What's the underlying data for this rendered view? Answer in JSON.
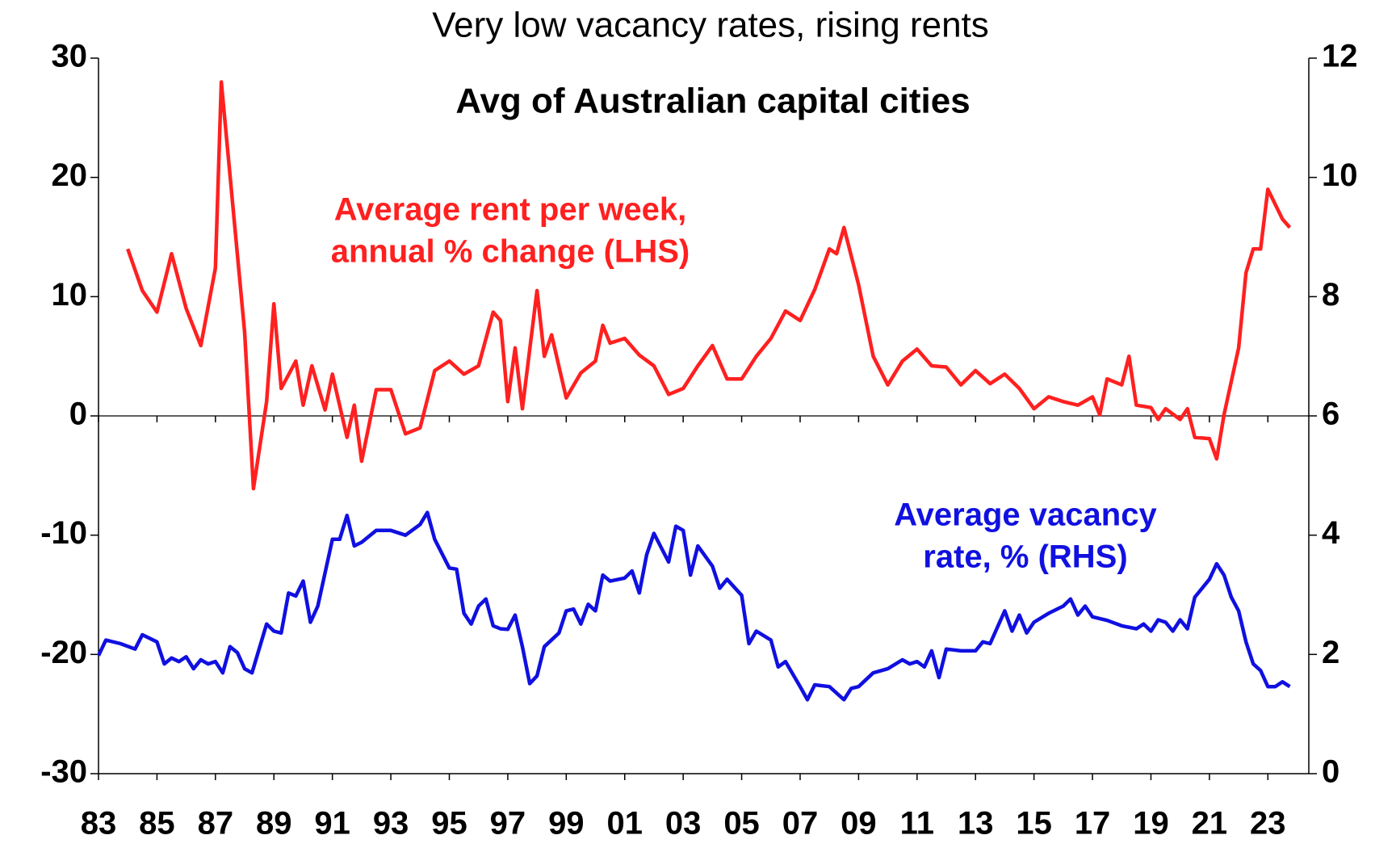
{
  "chart_data": {
    "type": "line",
    "title": "Very low vacancy rates, rising rents",
    "subtitle": "Avg of Australian capital cities",
    "xlim": [
      1983,
      2024.4
    ],
    "xticks": [
      {
        "value": 1983,
        "label": "83"
      },
      {
        "value": 1985,
        "label": "85"
      },
      {
        "value": 1987,
        "label": "87"
      },
      {
        "value": 1989,
        "label": "89"
      },
      {
        "value": 1991,
        "label": "91"
      },
      {
        "value": 1993,
        "label": "93"
      },
      {
        "value": 1995,
        "label": "95"
      },
      {
        "value": 1997,
        "label": "97"
      },
      {
        "value": 1999,
        "label": "99"
      },
      {
        "value": 2001,
        "label": "01"
      },
      {
        "value": 2003,
        "label": "03"
      },
      {
        "value": 2005,
        "label": "05"
      },
      {
        "value": 2007,
        "label": "07"
      },
      {
        "value": 2009,
        "label": "09"
      },
      {
        "value": 2011,
        "label": "11"
      },
      {
        "value": 2013,
        "label": "13"
      },
      {
        "value": 2015,
        "label": "15"
      },
      {
        "value": 2017,
        "label": "17"
      },
      {
        "value": 2019,
        "label": "19"
      },
      {
        "value": 2021,
        "label": "21"
      },
      {
        "value": 2023,
        "label": "23"
      }
    ],
    "ylim": [
      -30,
      30
    ],
    "yticks": [
      -30,
      -20,
      -10,
      0,
      10,
      20,
      30
    ],
    "y2lim": [
      0,
      12
    ],
    "y2ticks": [
      0,
      2,
      4,
      6,
      8,
      10,
      12
    ],
    "zero_line": true,
    "series": [
      {
        "label_lines": [
          "Average rent per week,",
          "annual % change (LHS)"
        ],
        "color": "#ff2020",
        "axis": "y",
        "x": [
          1984.0,
          1984.5,
          1985.0,
          1985.5,
          1986.0,
          1986.5,
          1987.0,
          1987.2,
          1988.0,
          1988.3,
          1988.75,
          1989.0,
          1989.25,
          1989.75,
          1990.0,
          1990.3,
          1990.75,
          1991.0,
          1991.5,
          1991.75,
          1992.0,
          1992.5,
          1993.0,
          1993.5,
          1994.0,
          1994.5,
          1995.0,
          1995.5,
          1996.0,
          1996.5,
          1996.75,
          1997.0,
          1997.25,
          1997.5,
          1998.0,
          1998.25,
          1998.5,
          1999.0,
          1999.5,
          2000.0,
          2000.25,
          2000.5,
          2001.0,
          2001.5,
          2002.0,
          2002.5,
          2003.0,
          2003.5,
          2004.0,
          2004.5,
          2005.0,
          2005.5,
          2006.0,
          2006.5,
          2007.0,
          2007.5,
          2008.0,
          2008.25,
          2008.5,
          2009.0,
          2009.5,
          2010.0,
          2010.5,
          2011.0,
          2011.5,
          2012.0,
          2012.5,
          2013.0,
          2013.5,
          2014.0,
          2014.5,
          2015.0,
          2015.5,
          2016.0,
          2016.5,
          2017.0,
          2017.25,
          2017.5,
          2018.0,
          2018.25,
          2018.5,
          2019.0,
          2019.25,
          2019.5,
          2020.0,
          2020.25,
          2020.5,
          2021.0,
          2021.25,
          2021.5,
          2022.0,
          2022.25,
          2022.5,
          2022.75,
          2023.0,
          2023.5,
          2023.75
        ],
        "values": [
          14,
          10.5,
          8.7,
          13.6,
          9,
          5.9,
          12.4,
          28,
          7,
          -6.1,
          1.2,
          9.4,
          2.3,
          4.6,
          0.9,
          4.2,
          0.5,
          3.5,
          -1.8,
          0.9,
          -3.8,
          2.2,
          2.2,
          -1.5,
          -1,
          3.8,
          4.6,
          3.5,
          4.2,
          8.7,
          8,
          1.2,
          5.7,
          0.6,
          10.5,
          5,
          6.8,
          1.5,
          3.6,
          4.6,
          7.6,
          6.1,
          6.5,
          5.1,
          4.2,
          1.8,
          2.3,
          4.2,
          5.9,
          3.1,
          3.1,
          5,
          6.5,
          8.8,
          8,
          10.6,
          14,
          13.6,
          15.8,
          11,
          5,
          2.6,
          4.6,
          5.6,
          4.2,
          4.1,
          2.6,
          3.8,
          2.7,
          3.5,
          2.3,
          0.6,
          1.6,
          1.2,
          0.9,
          1.6,
          0.1,
          3.1,
          2.6,
          5,
          0.9,
          0.7,
          -0.3,
          0.6,
          -0.3,
          0.6,
          -1.8,
          -1.9,
          -3.6,
          0.1,
          5.7,
          12,
          14,
          14,
          19,
          16.5,
          15.8
        ]
      },
      {
        "label_lines": [
          "Average vacancy",
          "rate, % (RHS)"
        ],
        "color": "#1010e0",
        "axis": "y2",
        "x": [
          1983.0,
          1983.25,
          1983.75,
          1984.25,
          1984.5,
          1985.0,
          1985.25,
          1985.5,
          1985.75,
          1986.0,
          1986.25,
          1986.5,
          1986.75,
          1987.0,
          1987.25,
          1987.5,
          1987.75,
          1988.0,
          1988.25,
          1988.75,
          1989.0,
          1989.25,
          1989.5,
          1989.75,
          1990.0,
          1990.25,
          1990.5,
          1991.0,
          1991.25,
          1991.5,
          1991.75,
          1992.0,
          1992.5,
          1993.0,
          1993.5,
          1994.0,
          1994.25,
          1994.5,
          1995.0,
          1995.25,
          1995.5,
          1995.75,
          1996.0,
          1996.25,
          1996.5,
          1996.75,
          1997.0,
          1997.25,
          1997.5,
          1997.75,
          1998.0,
          1998.25,
          1998.75,
          1999.0,
          1999.25,
          1999.5,
          1999.75,
          2000.0,
          2000.25,
          2000.5,
          2001.0,
          2001.25,
          2001.5,
          2001.75,
          2002.0,
          2002.5,
          2002.75,
          2003.0,
          2003.25,
          2003.5,
          2004.0,
          2004.25,
          2004.5,
          2005.0,
          2005.25,
          2005.5,
          2006.0,
          2006.25,
          2006.5,
          2007.0,
          2007.25,
          2007.5,
          2008.0,
          2008.5,
          2008.75,
          2009.0,
          2009.5,
          2010.0,
          2010.5,
          2010.75,
          2011.0,
          2011.25,
          2011.5,
          2011.75,
          2012.0,
          2012.5,
          2013.0,
          2013.25,
          2013.5,
          2014.0,
          2014.25,
          2014.5,
          2014.75,
          2015.0,
          2015.5,
          2016.0,
          2016.25,
          2016.5,
          2016.75,
          2017.0,
          2017.5,
          2018.0,
          2018.5,
          2018.75,
          2019.0,
          2019.25,
          2019.5,
          2019.75,
          2020.0,
          2020.25,
          2020.5,
          2021.0,
          2021.25,
          2021.5,
          2021.75,
          2022.0,
          2022.25,
          2022.5,
          2022.75,
          2023.0,
          2023.25,
          2023.5,
          2023.75
        ],
        "values": [
          1.98,
          2.24,
          2.18,
          2.09,
          2.33,
          2.21,
          1.84,
          1.94,
          1.88,
          1.96,
          1.76,
          1.91,
          1.84,
          1.88,
          1.69,
          2.13,
          2.03,
          1.76,
          1.69,
          2.51,
          2.39,
          2.36,
          3.03,
          2.98,
          3.23,
          2.54,
          2.81,
          3.93,
          3.93,
          4.33,
          3.82,
          3.88,
          4.08,
          4.08,
          4.0,
          4.18,
          4.38,
          3.93,
          3.45,
          3.43,
          2.69,
          2.51,
          2.81,
          2.93,
          2.48,
          2.43,
          2.42,
          2.66,
          2.13,
          1.51,
          1.64,
          2.13,
          2.36,
          2.73,
          2.76,
          2.51,
          2.84,
          2.73,
          3.33,
          3.23,
          3.28,
          3.4,
          3.03,
          3.67,
          4.03,
          3.55,
          4.15,
          4.08,
          3.33,
          3.82,
          3.48,
          3.11,
          3.26,
          2.99,
          2.18,
          2.39,
          2.24,
          1.79,
          1.88,
          1.46,
          1.24,
          1.49,
          1.46,
          1.24,
          1.43,
          1.46,
          1.69,
          1.76,
          1.91,
          1.84,
          1.88,
          1.79,
          2.06,
          1.61,
          2.09,
          2.06,
          2.06,
          2.21,
          2.18,
          2.73,
          2.39,
          2.66,
          2.36,
          2.54,
          2.69,
          2.81,
          2.93,
          2.66,
          2.81,
          2.63,
          2.57,
          2.48,
          2.43,
          2.51,
          2.39,
          2.58,
          2.54,
          2.39,
          2.58,
          2.43,
          2.96,
          3.26,
          3.52,
          3.33,
          2.96,
          2.73,
          2.21,
          1.84,
          1.73,
          1.46,
          1.46,
          1.54,
          1.46
        ]
      }
    ]
  }
}
